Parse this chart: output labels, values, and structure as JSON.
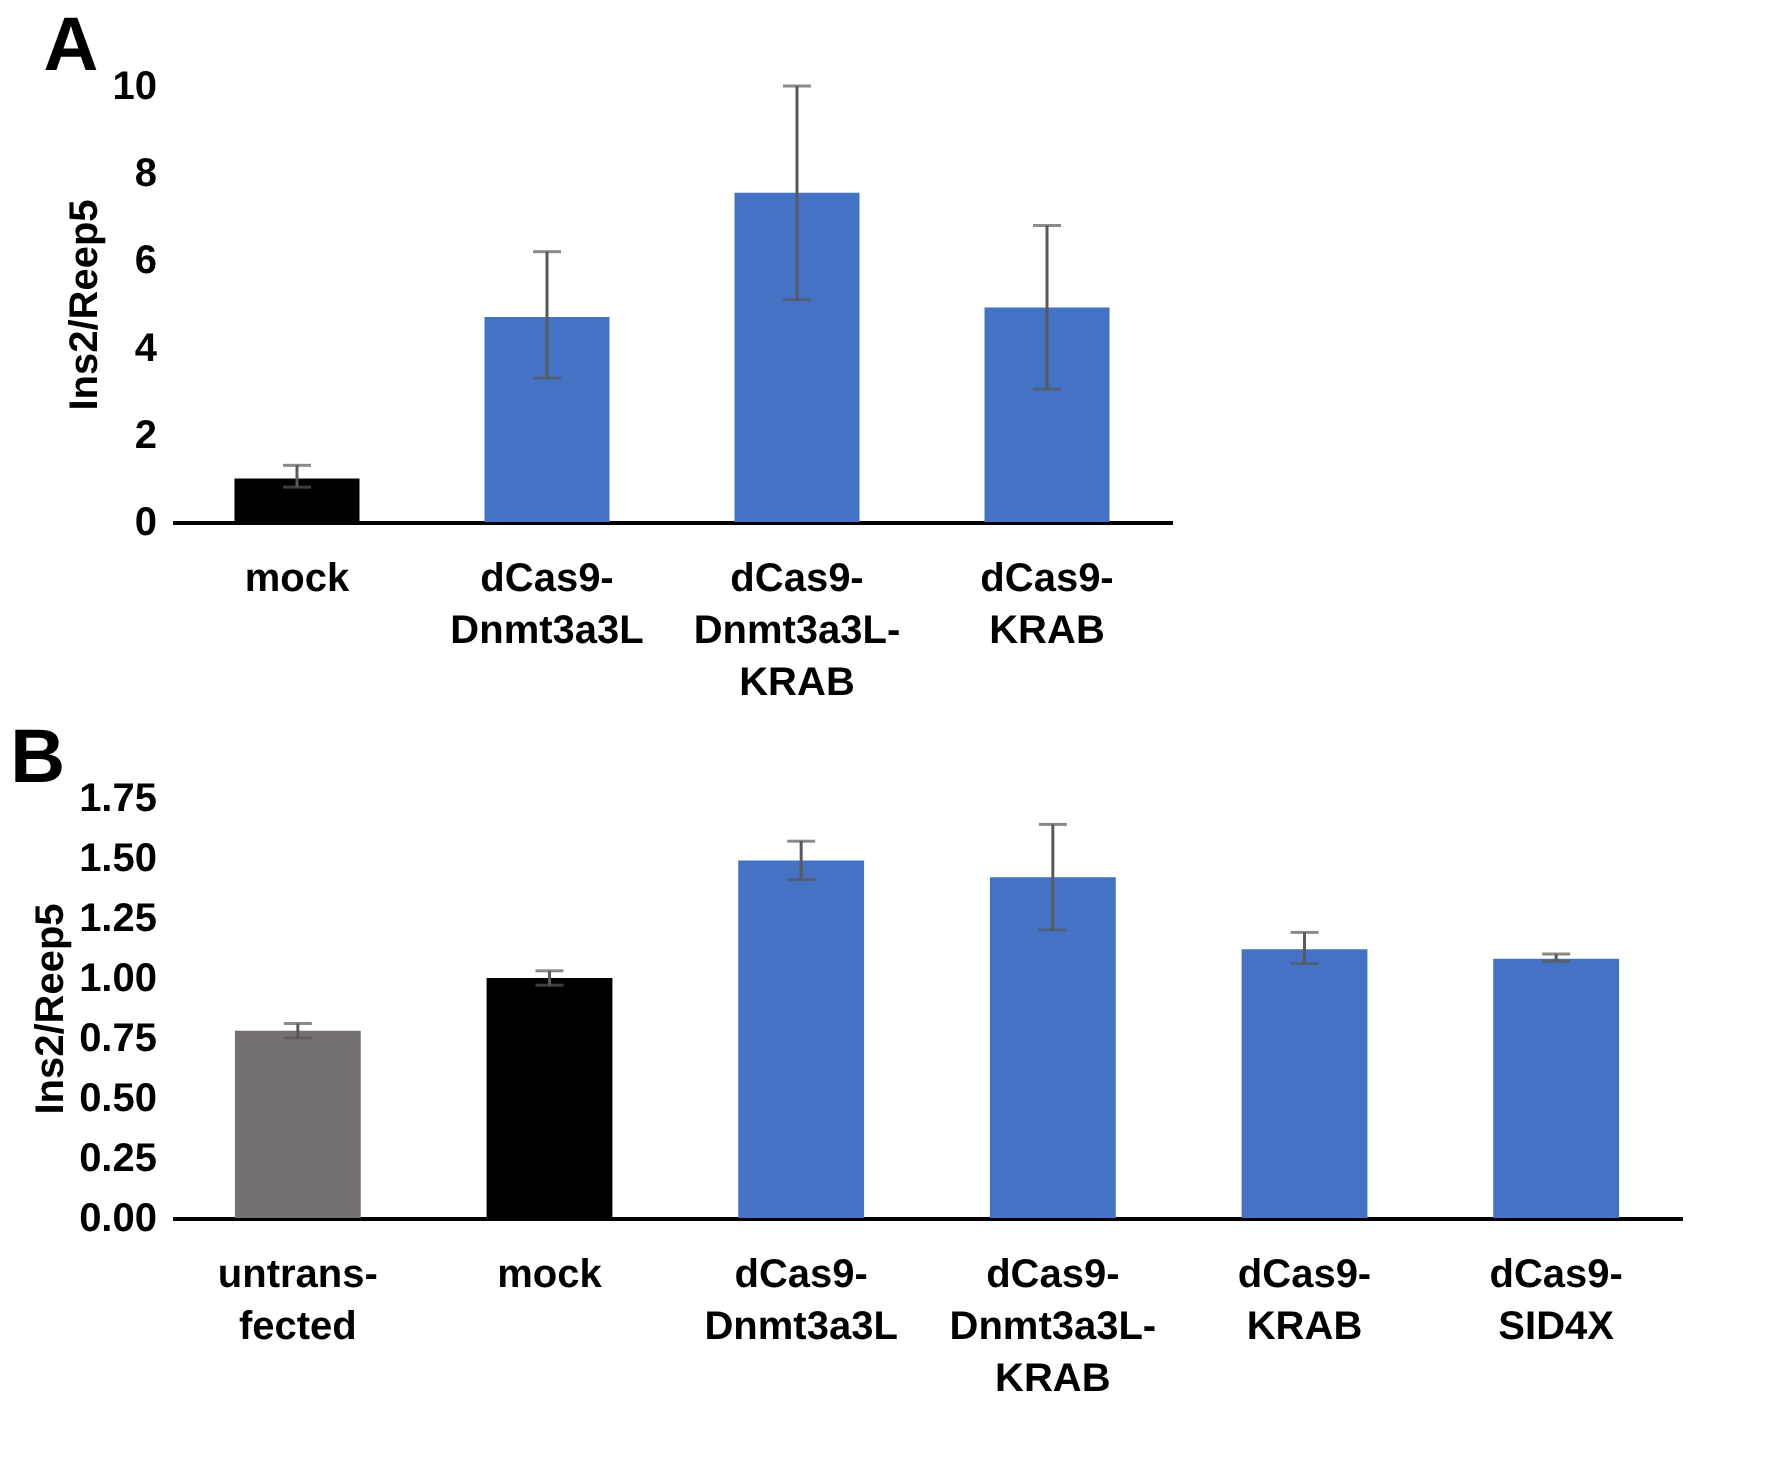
{
  "chart_data": [
    {
      "type": "bar",
      "title": "A",
      "ylabel": "Ins2/Reep5",
      "categories": [
        "mock",
        "dCas9-\nDnmt3a3L",
        "dCas9-\nDnmt3a3L-\nKRAB",
        "dCas9-\nKRAB"
      ],
      "values": [
        1.0,
        4.7,
        7.55,
        4.92
      ],
      "colors": [
        "#000000",
        "#4472c4",
        "#4472c4",
        "#4472c4"
      ],
      "errors": [
        [
          0.8,
          1.3
        ],
        [
          3.3,
          6.2
        ],
        [
          5.1,
          10.0
        ],
        [
          3.05,
          6.8
        ]
      ],
      "ylim": [
        0,
        10
      ],
      "yticks": [
        0,
        2,
        4,
        6,
        8,
        10
      ],
      "grid": false
    },
    {
      "type": "bar",
      "title": "B",
      "ylabel": "Ins2/Reep5",
      "categories": [
        "untrans-\nfected",
        "mock",
        "dCas9-\nDnmt3a3L",
        "dCas9-\nDnmt3a3L-\nKRAB",
        "dCas9-\nKRAB",
        "dCas9-\nSID4X"
      ],
      "values": [
        0.78,
        1.0,
        1.49,
        1.42,
        1.12,
        1.08
      ],
      "colors": [
        "#767171",
        "#000000",
        "#4472c4",
        "#4472c4",
        "#4472c4",
        "#4472c4"
      ],
      "errors": [
        [
          0.75,
          0.81
        ],
        [
          0.97,
          1.03
        ],
        [
          1.41,
          1.57
        ],
        [
          1.2,
          1.64
        ],
        [
          1.06,
          1.19
        ],
        [
          1.07,
          1.1
        ]
      ],
      "ylim": [
        0,
        1.75
      ],
      "yticks": [
        {
          "value": 0,
          "label": "0.00"
        },
        {
          "value": 0.25,
          "label": "0.25"
        },
        {
          "value": 0.5,
          "label": "0.50"
        },
        {
          "value": 0.75,
          "label": "0.75"
        },
        {
          "value": 1,
          "label": "1.00"
        },
        {
          "value": 1.25,
          "label": "1.25"
        },
        {
          "value": 1.5,
          "label": "1.50"
        },
        {
          "value": 1.75,
          "label": "1.75"
        }
      ],
      "grid": false
    }
  ]
}
